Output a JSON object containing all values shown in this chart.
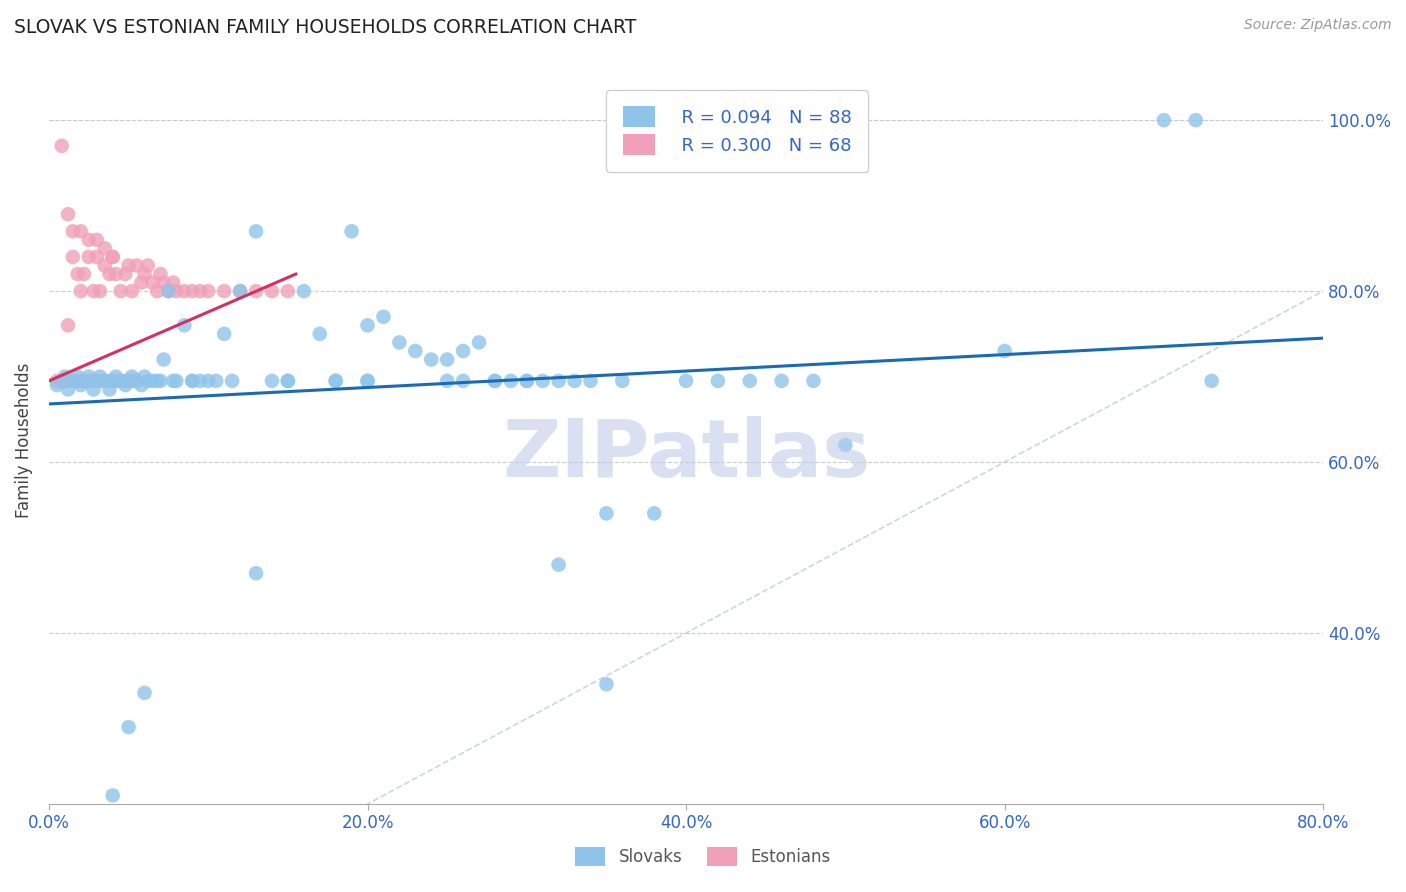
{
  "title": "SLOVAK VS ESTONIAN FAMILY HOUSEHOLDS CORRELATION CHART",
  "source": "Source: ZipAtlas.com",
  "ylabel": "Family Households",
  "xlim": [
    0.0,
    0.8
  ],
  "ylim": [
    0.2,
    1.05
  ],
  "legend_blue_r": "R = 0.094",
  "legend_blue_n": "N = 88",
  "legend_pink_r": "R = 0.300",
  "legend_pink_n": "N = 68",
  "blue_color": "#8EC4EA",
  "pink_color": "#F0A0B8",
  "trendline_blue": "#1A6BB5",
  "trendline_pink": "#D43060",
  "trendline_dashed_color": "#C8D0E8",
  "axis_tick_color": "#3366CC",
  "title_color": "#222222",
  "source_color": "#999999",
  "watermark": "ZIPatlas",
  "watermark_color": "#C0CCE8",
  "blue_scatter_x": [
    0.005,
    0.01,
    0.012,
    0.015,
    0.018,
    0.02,
    0.022,
    0.025,
    0.028,
    0.03,
    0.032,
    0.035,
    0.038,
    0.04,
    0.042,
    0.045,
    0.048,
    0.05,
    0.052,
    0.055,
    0.058,
    0.06,
    0.062,
    0.065,
    0.068,
    0.07,
    0.072,
    0.075,
    0.078,
    0.08,
    0.085,
    0.09,
    0.095,
    0.1,
    0.105,
    0.11,
    0.115,
    0.12,
    0.13,
    0.14,
    0.15,
    0.16,
    0.17,
    0.18,
    0.19,
    0.2,
    0.21,
    0.22,
    0.23,
    0.24,
    0.25,
    0.26,
    0.27,
    0.28,
    0.29,
    0.3,
    0.31,
    0.32,
    0.33,
    0.34,
    0.35,
    0.36,
    0.38,
    0.4,
    0.42,
    0.44,
    0.46,
    0.48,
    0.5,
    0.6,
    0.7,
    0.72,
    0.73,
    0.2,
    0.25,
    0.3,
    0.15,
    0.2,
    0.28,
    0.32,
    0.18,
    0.26,
    0.35,
    0.13,
    0.09,
    0.06,
    0.05,
    0.04
  ],
  "blue_scatter_y": [
    0.69,
    0.7,
    0.685,
    0.695,
    0.7,
    0.69,
    0.695,
    0.7,
    0.685,
    0.695,
    0.7,
    0.695,
    0.685,
    0.695,
    0.7,
    0.695,
    0.69,
    0.695,
    0.7,
    0.695,
    0.69,
    0.7,
    0.695,
    0.695,
    0.695,
    0.695,
    0.72,
    0.8,
    0.695,
    0.695,
    0.76,
    0.695,
    0.695,
    0.695,
    0.695,
    0.75,
    0.695,
    0.8,
    0.87,
    0.695,
    0.695,
    0.8,
    0.75,
    0.695,
    0.87,
    0.76,
    0.77,
    0.74,
    0.73,
    0.72,
    0.72,
    0.73,
    0.74,
    0.695,
    0.695,
    0.695,
    0.695,
    0.695,
    0.695,
    0.695,
    0.54,
    0.695,
    0.54,
    0.695,
    0.695,
    0.695,
    0.695,
    0.695,
    0.62,
    0.73,
    1.0,
    1.0,
    0.695,
    0.695,
    0.695,
    0.695,
    0.695,
    0.695,
    0.695,
    0.48,
    0.695,
    0.695,
    0.34,
    0.47,
    0.695,
    0.33,
    0.29,
    0.21
  ],
  "pink_scatter_x": [
    0.005,
    0.008,
    0.01,
    0.012,
    0.015,
    0.018,
    0.02,
    0.022,
    0.025,
    0.028,
    0.03,
    0.032,
    0.035,
    0.038,
    0.04,
    0.042,
    0.045,
    0.048,
    0.05,
    0.052,
    0.055,
    0.058,
    0.06,
    0.062,
    0.065,
    0.068,
    0.07,
    0.072,
    0.075,
    0.078,
    0.08,
    0.085,
    0.09,
    0.095,
    0.1,
    0.11,
    0.12,
    0.13,
    0.14,
    0.15,
    0.018,
    0.022,
    0.028,
    0.032,
    0.038,
    0.042,
    0.048,
    0.052,
    0.008,
    0.012,
    0.015,
    0.02,
    0.025,
    0.03,
    0.035,
    0.04,
    0.008,
    0.01,
    0.015,
    0.018,
    0.022,
    0.025,
    0.03,
    0.035,
    0.04,
    0.045,
    0.05,
    0.055
  ],
  "pink_scatter_y": [
    0.695,
    0.695,
    0.695,
    0.76,
    0.84,
    0.82,
    0.8,
    0.82,
    0.84,
    0.8,
    0.84,
    0.8,
    0.83,
    0.82,
    0.84,
    0.82,
    0.8,
    0.82,
    0.83,
    0.8,
    0.83,
    0.81,
    0.82,
    0.83,
    0.81,
    0.8,
    0.82,
    0.81,
    0.8,
    0.81,
    0.8,
    0.8,
    0.8,
    0.8,
    0.8,
    0.8,
    0.8,
    0.8,
    0.8,
    0.8,
    0.695,
    0.695,
    0.695,
    0.695,
    0.695,
    0.695,
    0.695,
    0.695,
    0.97,
    0.89,
    0.87,
    0.87,
    0.86,
    0.86,
    0.85,
    0.84,
    0.695,
    0.695,
    0.695,
    0.695,
    0.695,
    0.695,
    0.695,
    0.695,
    0.695,
    0.695,
    0.695,
    0.695
  ],
  "blue_trendline_x": [
    0.0,
    0.8
  ],
  "blue_trendline_y": [
    0.668,
    0.745
  ],
  "pink_trendline_x": [
    0.0,
    0.155
  ],
  "pink_trendline_y": [
    0.695,
    0.82
  ]
}
